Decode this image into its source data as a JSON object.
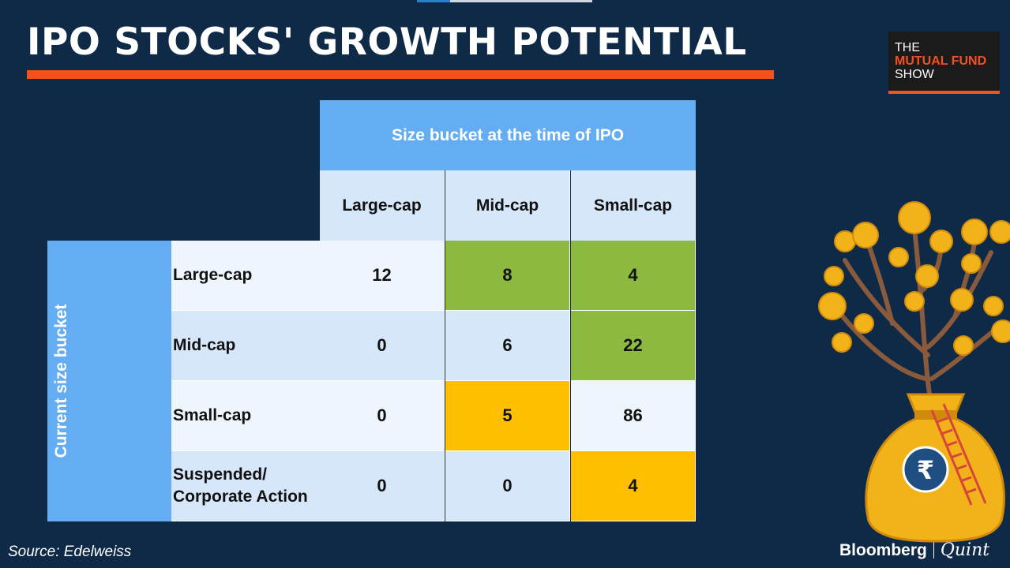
{
  "title": "IPO STOCKS' GROWTH POTENTIAL",
  "logo": {
    "line1": "THE",
    "line2": "MUTUAL FUND",
    "line3": "SHOW"
  },
  "colors": {
    "background": "#0f2a47",
    "accent": "#f4511e",
    "header_blue": "#64adf2",
    "green": "#8cb940",
    "orange": "#ffbf00",
    "light_a": "#eef5fd",
    "light_b": "#d6e7f9"
  },
  "chart_data": {
    "type": "table",
    "column_group_header": "Size bucket at the time of IPO",
    "row_group_header": "Current size bucket",
    "columns": [
      "Large-cap",
      "Mid-cap",
      "Small-cap"
    ],
    "rows": [
      {
        "label": "Large-cap",
        "values": [
          12,
          8,
          4
        ],
        "highlight": [
          "none",
          "green",
          "green"
        ]
      },
      {
        "label": "Mid-cap",
        "values": [
          0,
          6,
          22
        ],
        "highlight": [
          "none",
          "none",
          "green"
        ]
      },
      {
        "label": "Small-cap",
        "values": [
          0,
          5,
          86
        ],
        "highlight": [
          "none",
          "orange",
          "none"
        ]
      },
      {
        "label": "Suspended/ Corporate Action",
        "values": [
          0,
          0,
          4
        ],
        "highlight": [
          "none",
          "none",
          "orange"
        ]
      }
    ]
  },
  "source": "Source: Edelweiss",
  "brand": {
    "name1": "Bloomberg",
    "name2": "Quint"
  }
}
